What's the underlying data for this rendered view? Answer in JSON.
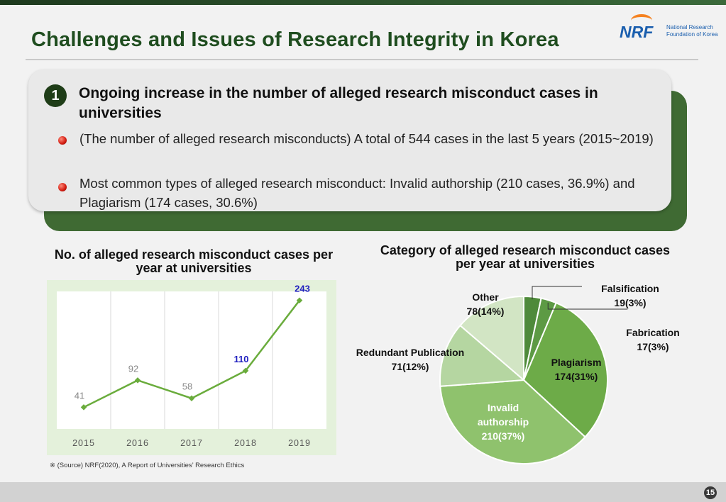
{
  "title": "Challenges and Issues of Research Integrity in Korea",
  "logo": {
    "abbr": "NRF",
    "line1": "National Research",
    "line2": "Foundation of Korea"
  },
  "section": {
    "number": "1",
    "heading": "Ongoing increase in the number of alleged research misconduct cases in universities",
    "bullets": [
      "(The number of alleged research misconducts) A total of 544 cases in the last 5 years (2015~2019)",
      "Most common types of  alleged research misconduct: Invalid authorship (210 cases, 36.9%) and Plagiarism (174 cases, 30.6%)"
    ]
  },
  "line_chart_title": "No. of alleged research misconduct cases per year at universities",
  "pie_chart_title": "Category of alleged research misconduct cases per year at universities",
  "source_note": "※ (Source) NRF(2020), A Report of Universities’ Research Ethics",
  "page_number": "15",
  "colors": {
    "title": "#1f4d1f",
    "line": "#6aac3c",
    "highlight": "#1f1fbf",
    "bg_chart": "#e6f2de"
  },
  "chart_data": [
    {
      "type": "line",
      "title": "No. of alleged research misconduct cases per year at universities",
      "categories": [
        "2015",
        "2016",
        "2017",
        "2018",
        "2019"
      ],
      "values": [
        41,
        92,
        58,
        110,
        243
      ],
      "value_labels": [
        "41",
        "92",
        "58",
        "110",
        "243"
      ],
      "highlighted": [
        "2018",
        "2019"
      ],
      "ylim": [
        0,
        260
      ],
      "xlabel": "",
      "ylabel": ""
    },
    {
      "type": "pie",
      "title": "Category of alleged research misconduct cases per year at universities",
      "slices": [
        {
          "name": "Falsification",
          "value": 19,
          "label": "19(3%)",
          "color": "#4e8a3a"
        },
        {
          "name": "Fabrication",
          "value": 17,
          "label": "17(3%)",
          "color": "#5d9a44"
        },
        {
          "name": "Plagiarism",
          "value": 174,
          "label": "174(31%)",
          "color": "#6dab48"
        },
        {
          "name": "Invalid authorship",
          "value": 210,
          "label": "210(37%)",
          "color": "#8fc26d"
        },
        {
          "name": "Redundant Publication",
          "value": 71,
          "label": "71(12%)",
          "color": "#b5d6a1"
        },
        {
          "name": "Other",
          "value": 78,
          "label": "78(14%)",
          "color": "#d2e5c4"
        }
      ]
    }
  ]
}
